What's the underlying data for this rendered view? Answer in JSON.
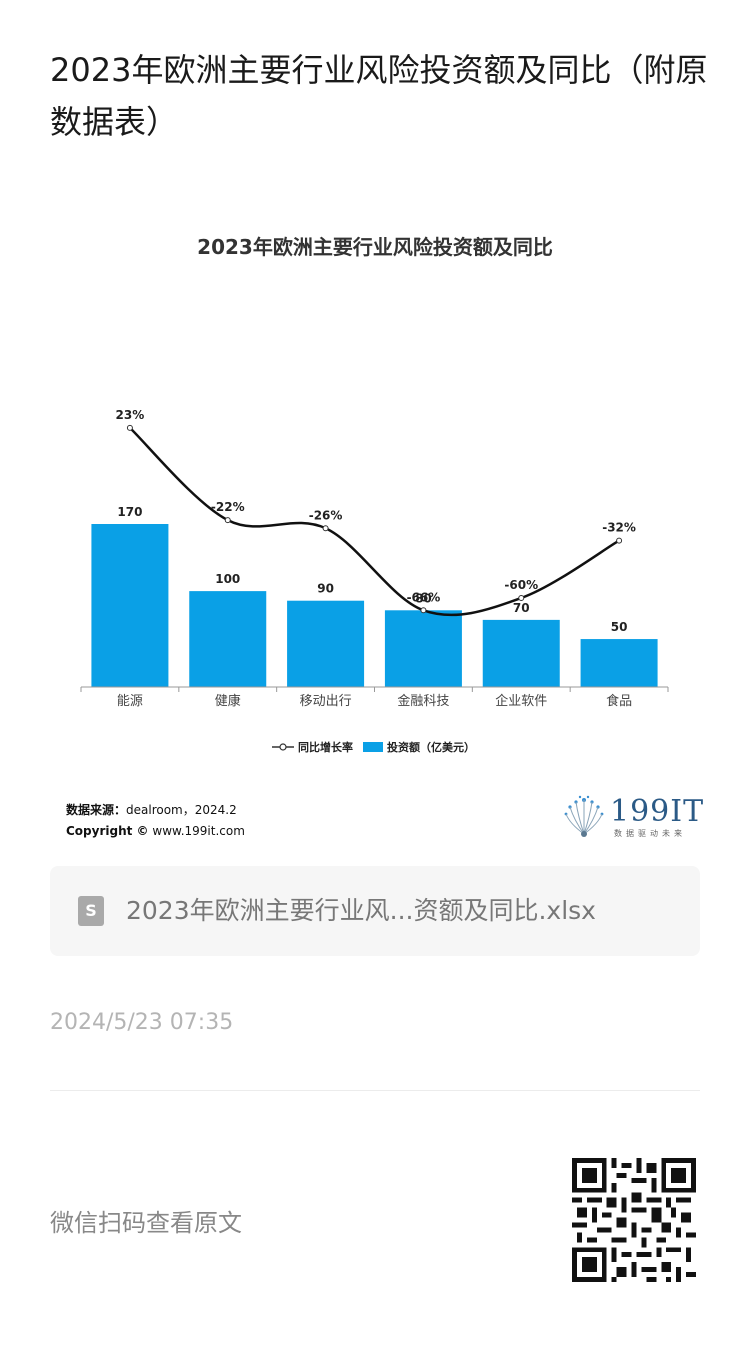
{
  "page": {
    "title": "2023年欧洲主要行业风险投资额及同比（附原数据表）"
  },
  "chart_data": {
    "type": "bar",
    "title": "2023年欧洲主要行业风险投资额及同比",
    "categories": [
      "能源",
      "健康",
      "移动出行",
      "金融科技",
      "企业软件",
      "食品"
    ],
    "series": [
      {
        "name": "投资额（亿美元）",
        "type": "bar",
        "values": [
          170,
          100,
          90,
          80,
          70,
          50
        ],
        "color": "#0aa0e6"
      },
      {
        "name": "同比增长率",
        "type": "line",
        "values": [
          23,
          -22,
          -26,
          -66,
          -60,
          -32
        ],
        "labels": [
          "23%",
          "-22%",
          "-26%",
          "-66%",
          "-60%",
          "-32%"
        ],
        "color": "#111111"
      }
    ],
    "legend": {
      "position": "bottom",
      "items": [
        {
          "label": "同比增长率",
          "marker": "line-circle"
        },
        {
          "label": "投资额（亿美元）",
          "marker": "square"
        }
      ]
    },
    "source_label": "数据来源：",
    "source_value": "dealroom，2024.2",
    "copyright_label": "Copyright ©",
    "copyright_value": "www.199it.com"
  },
  "logo": {
    "text": "199IT",
    "subtitle": "数据驱动未来"
  },
  "attachment": {
    "icon": "file-doc-icon",
    "icon_glyph": "S",
    "name": "2023年欧洲主要行业风...资额及同比.xlsx"
  },
  "timestamp": "2024/5/23 07:35",
  "footer": {
    "read_original": "微信扫码查看原文",
    "qr": "qr-code-icon"
  }
}
